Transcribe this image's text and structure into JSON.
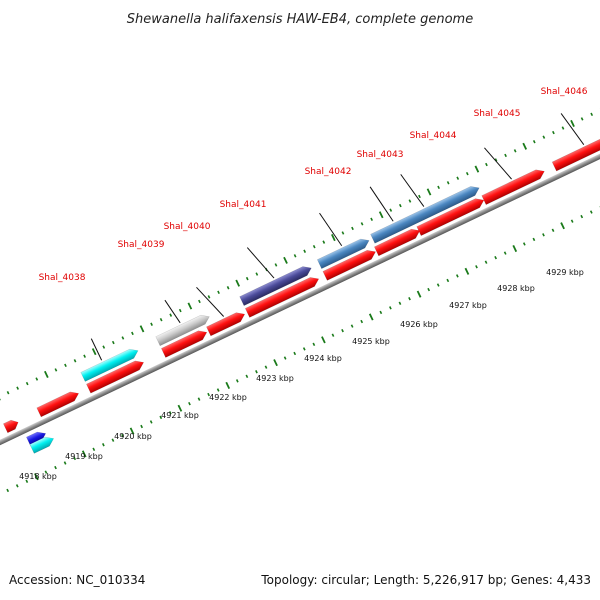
{
  "title": "Shewanella halifaxensis HAW-EB4, complete genome",
  "footer": {
    "accession": "Accession: NC_010334",
    "topology": "Topology: circular; Length: 5,226,917 bp; Genes: 4,433"
  },
  "colors": {
    "background": "#ffffff",
    "backbone": "#8c8c8c",
    "tick_major": "#1a7a1a",
    "tick_minor": "#1a8a1a",
    "gene_label": "#e00000",
    "gene_red": "#ff0000",
    "gene_cyan": "#00ffff",
    "gene_lightgray": "#cfcfcf",
    "gene_darkslate": "#4b4b9a",
    "gene_steelblue": "#4a86c0",
    "gene_blue": "#1818e0"
  },
  "gene_labels": [
    {
      "id": "shal4038",
      "text": "Shal_4038"
    },
    {
      "id": "shal4039",
      "text": "Shal_4039"
    },
    {
      "id": "shal4040",
      "text": "Shal_4040"
    },
    {
      "id": "shal4041",
      "text": "Shal_4041"
    },
    {
      "id": "shal4042",
      "text": "Shal_4042"
    },
    {
      "id": "shal4043",
      "text": "Shal_4043"
    },
    {
      "id": "shal4044",
      "text": "Shal_4044"
    },
    {
      "id": "shal4045",
      "text": "Shal_4045"
    },
    {
      "id": "shal4046",
      "text": "Shal_4046"
    }
  ],
  "kbp_labels": [
    {
      "id": "k4918",
      "text": "4918 kbp"
    },
    {
      "id": "k4919",
      "text": "4919 kbp"
    },
    {
      "id": "k4920",
      "text": "4920 kbp"
    },
    {
      "id": "k4921",
      "text": "4921 kbp"
    },
    {
      "id": "k4922",
      "text": "4922 kbp"
    },
    {
      "id": "k4923",
      "text": "4923 kbp"
    },
    {
      "id": "k4924",
      "text": "4924 kbp"
    },
    {
      "id": "k4925",
      "text": "4925 kbp"
    },
    {
      "id": "k4926",
      "text": "4926 kbp"
    },
    {
      "id": "k4927",
      "text": "4927 kbp"
    },
    {
      "id": "k4928",
      "text": "4928 kbp"
    },
    {
      "id": "k4929",
      "text": "4929 kbp"
    }
  ]
}
